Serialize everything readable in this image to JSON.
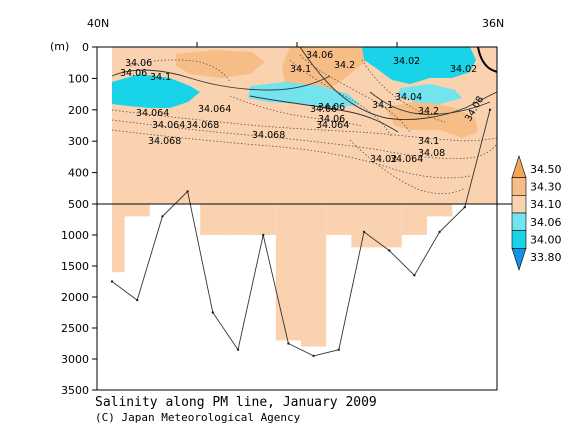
{
  "chart_data": {
    "type": "heatmap",
    "title": "Salinity along PM line, January 2009",
    "credit": "(C) Japan Meteorological Agency",
    "x_labels": {
      "left": "40N",
      "right": "36N"
    },
    "y_unit": "(m)",
    "y_ticks_upper": [
      0,
      100,
      200,
      300,
      400,
      500
    ],
    "y_ticks_lower": [
      1000,
      1500,
      2000,
      2500,
      3000,
      3500
    ],
    "y_break": 500,
    "colorbar": {
      "levels": [
        "34.50",
        "34.30",
        "34.10",
        "34.06",
        "34.00",
        "33.80"
      ],
      "colors": [
        "#f2a65a",
        "#f6be86",
        "#fad2b0",
        "#73e3ee",
        "#19d3e8",
        "#1591e6"
      ]
    },
    "contour_labels": [
      "34.06",
      "34.06",
      "34.1",
      "34.064",
      "34.064",
      "34.064",
      "34.068",
      "34.068",
      "34.068",
      "34.06",
      "34.1",
      "34.2",
      "34.02",
      "34.02",
      "34.04",
      "34.1",
      "34.06",
      "34.06",
      "34.064",
      "34.2",
      "34.1",
      "34.08",
      "34.06",
      "34.02",
      "34.064",
      "34.08"
    ],
    "stations": {
      "data_depth_m": [
        1600,
        700,
        460,
        460,
        1000,
        1000,
        1000,
        2700,
        2800,
        1000,
        1200,
        1200,
        1000,
        700,
        200,
        200
      ],
      "bottom_depth_m": [
        1750,
        2050,
        700,
        460,
        2250,
        2850,
        1000,
        2750,
        2950,
        2850,
        950,
        1250,
        1650,
        950,
        550,
        200
      ]
    }
  }
}
